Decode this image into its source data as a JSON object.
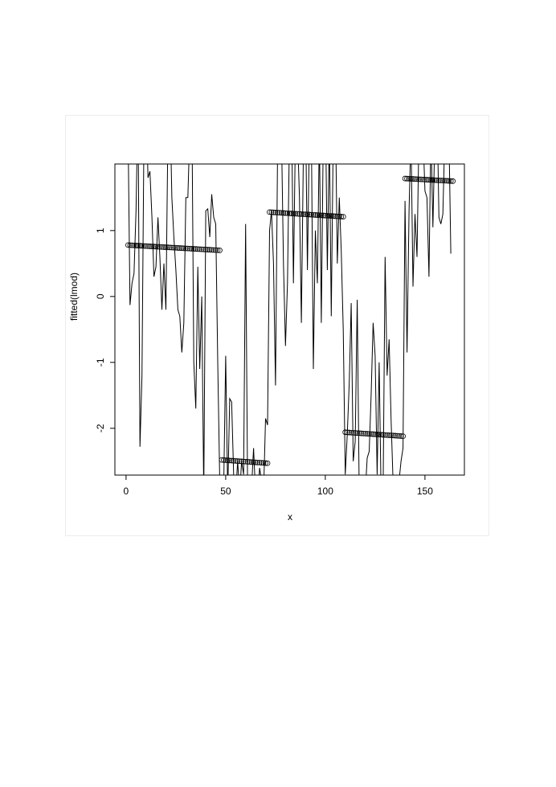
{
  "chart_data": {
    "type": "scatter",
    "xlabel": "x",
    "ylabel": "fitted(lmod)",
    "xlim": [
      -5.6,
      169.8
    ],
    "ylim": [
      -2.71,
      2.01
    ],
    "x_ticks": [
      "0",
      "50",
      "100",
      "150"
    ],
    "y_ticks": [
      "-2",
      "-1",
      "0",
      "1"
    ],
    "grid": false,
    "line_series": {
      "x_start": 1,
      "y": [
        2.5,
        -0.13,
        0.2,
        0.35,
        1.3,
        3,
        -2.28,
        -1.2,
        2.5,
        3,
        1.8,
        1.9,
        1.2,
        0.3,
        0.45,
        1.2,
        0.6,
        -0.2,
        0.5,
        -0.2,
        2.5,
        3,
        1.5,
        0.9,
        0.4,
        -0.2,
        -0.3,
        -0.85,
        -0.4,
        1.5,
        1.5,
        2.5,
        3,
        -1.0,
        -1.7,
        0.45,
        -1.1,
        0,
        -3,
        1.3,
        1.33,
        0.9,
        1.55,
        1.2,
        1.1,
        -1.0,
        -2.8,
        -3,
        -2.9,
        -0.9,
        -3,
        -1.55,
        -1.6,
        -2.7,
        -3,
        -2.5,
        -3,
        -2.5,
        -2.7,
        1.1,
        -3,
        -3,
        -2.9,
        -2.3,
        -3,
        -3.1,
        -2.6,
        -2.8,
        -3,
        -1.85,
        -1.95,
        1.0,
        1.3,
        0.5,
        -1.35,
        2.1,
        3,
        2.5,
        0.5,
        -0.75,
        0.2,
        2.5,
        3,
        0.2,
        2.5,
        2.5,
        1.5,
        -0.4,
        2.2,
        3,
        0.4,
        2.5,
        2.5,
        -1.1,
        1.0,
        0.2,
        2.5,
        -0.4,
        2.5,
        3,
        0.4,
        2.5,
        -0.3,
        2.5,
        3,
        0.5,
        1.5,
        0.7,
        -0.5,
        -2.7,
        -2.1,
        -1.3,
        -0.1,
        -2.5,
        -2.2,
        -0.05,
        -3,
        -3,
        -3,
        -3,
        -2.45,
        -2.35,
        -1.5,
        -0.4,
        -0.9,
        -2.7,
        -1.0,
        -3,
        -3,
        0.6,
        -1.2,
        -0.65,
        -1.85,
        -2.8,
        -3,
        -3,
        -2.8,
        -2.5,
        -2.3,
        1.45,
        -0.85,
        1.3,
        2.5,
        0.15,
        1.25,
        0.6,
        2.5,
        3,
        2.5,
        1.6,
        1.5,
        0.3,
        2.5,
        1.05,
        2.5,
        3,
        1.2,
        1.1,
        1.25,
        2.5,
        3,
        2.5,
        0.65
      ]
    },
    "fitted_segments": [
      {
        "x_start": 1,
        "x_end": 47,
        "y_start": 0.78,
        "y_end": 0.7
      },
      {
        "x_start": 48,
        "x_end": 71,
        "y_start": -2.48,
        "y_end": -2.53
      },
      {
        "x_start": 72,
        "x_end": 109,
        "y_start": 1.28,
        "y_end": 1.21
      },
      {
        "x_start": 110,
        "x_end": 139,
        "y_start": -2.06,
        "y_end": -2.12
      },
      {
        "x_start": 140,
        "x_end": 164,
        "y_start": 1.79,
        "y_end": 1.75
      }
    ]
  }
}
